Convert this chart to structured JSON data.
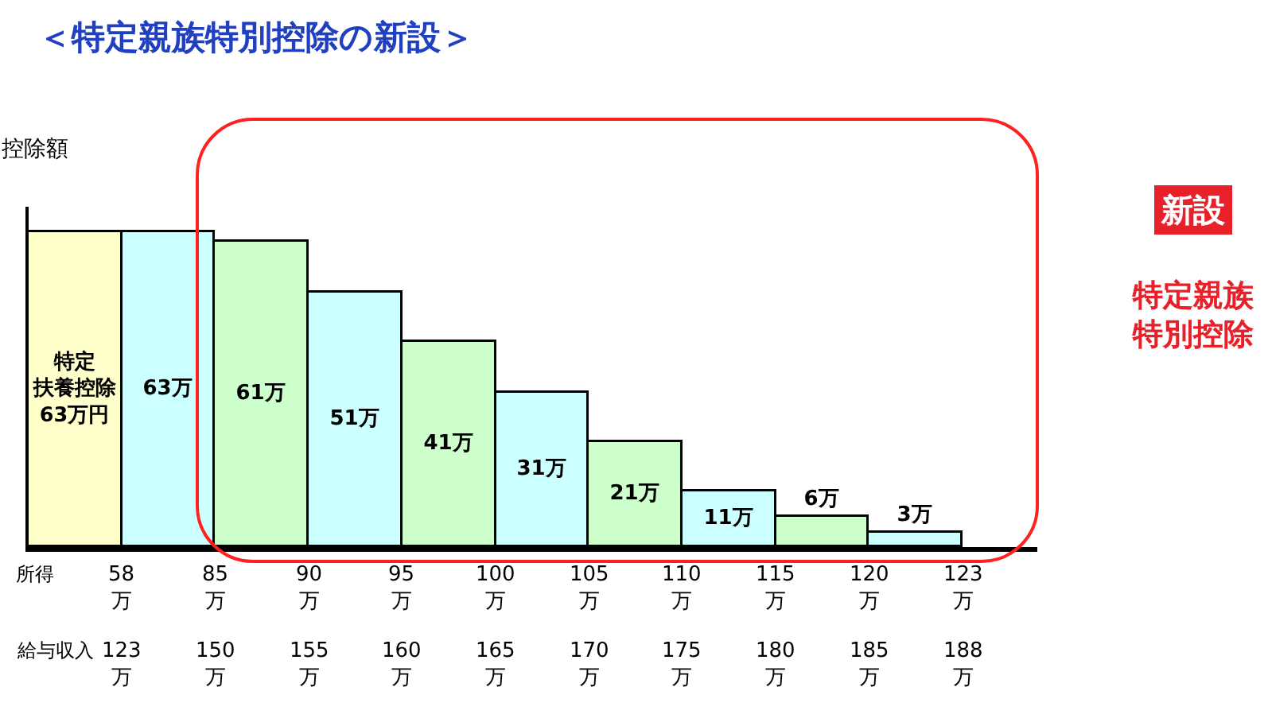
{
  "chart_data": {
    "type": "bar",
    "title": "＜特定親族特別控除の新設＞",
    "ylabel": "控除額",
    "categories": [
      null,
      null,
      null,
      null,
      null,
      null,
      null,
      null,
      null,
      null
    ],
    "values": [
      63,
      63,
      61,
      51,
      41,
      31,
      21,
      11,
      6,
      3
    ],
    "value_labels": [
      "特定扶養控除63万円",
      "63万",
      "61万",
      "51万",
      "41万",
      "31万",
      "21万",
      "11万",
      "6万",
      "3万"
    ],
    "colors": [
      "#ffffcc",
      "#ccffff",
      "#ccffcc",
      "#ccffff",
      "#ccffcc",
      "#ccffff",
      "#ccffcc",
      "#ccffff",
      "#ccffcc",
      "#ccffff"
    ],
    "annotations": [
      "所得",
      "58\n万",
      "85\n万",
      "90\n万",
      "95\n万",
      "100\n万",
      "105\n万",
      "110\n万",
      "115\n万",
      "120\n万",
      "123\n万",
      "給与収入",
      "123\n万",
      "150\n万",
      "155\n万",
      "160\n万",
      "165\n万",
      "170\n万",
      "175\n万",
      "180\n万",
      "185\n万",
      "188\n万",
      "新設",
      "特定親族特別控除"
    ]
  }
}
